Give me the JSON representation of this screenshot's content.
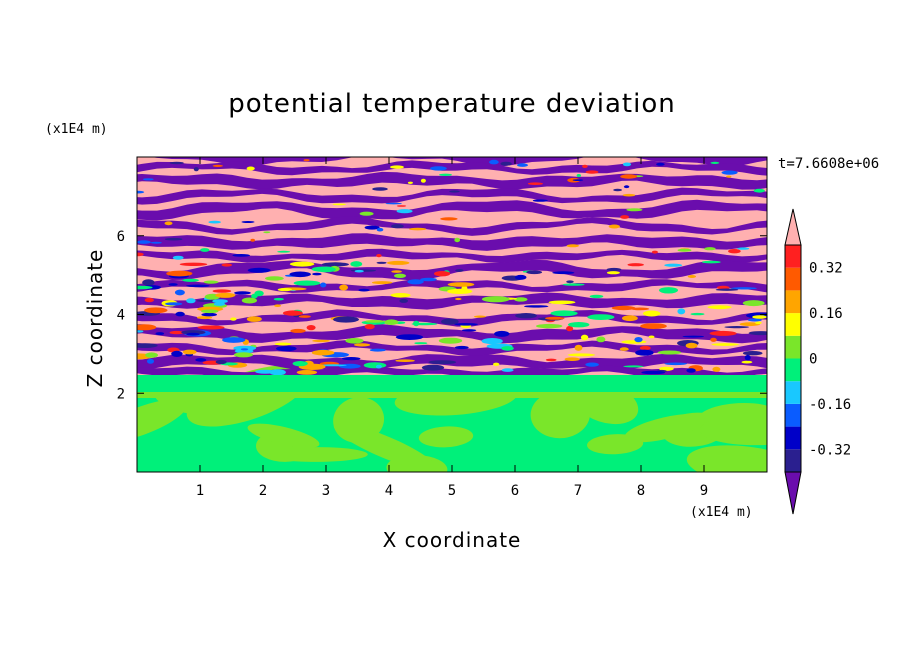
{
  "chart_data": {
    "type": "heatmap",
    "title": "potential temperature deviation",
    "xlabel": "X coordinate",
    "ylabel": "Z coordinate",
    "x_unit": "(x1E4 m)",
    "y_unit": "(x1E4 m)",
    "time_label": "t=7.6608e+06",
    "x_range": [
      0,
      10
    ],
    "y_range": [
      0,
      8
    ],
    "x_ticks": [
      "1",
      "2",
      "3",
      "4",
      "5",
      "6",
      "7",
      "8",
      "9"
    ],
    "y_ticks": [
      "2",
      "4",
      "6"
    ],
    "colorbar": {
      "levels": [
        -0.4,
        -0.32,
        -0.24,
        -0.16,
        -0.08,
        0,
        0.08,
        0.16,
        0.24,
        0.32,
        0.4
      ],
      "tick_labels": [
        "-0.32",
        "-0.16",
        "0",
        "0.16",
        "0.32"
      ],
      "colors": [
        "#6a0dad",
        "#2a1f8f",
        "#0000c8",
        "#0a5cff",
        "#19c8ff",
        "#00f07a",
        "#7ae62a",
        "#ffff00",
        "#ffa500",
        "#ff5a00",
        "#ff2020",
        "#ffb0b0"
      ]
    },
    "regions": [
      {
        "z_range": [
          0,
          2.5
        ],
        "description": "near-neutral layer",
        "dominant_levels": [
          -0.08,
          0.08
        ]
      },
      {
        "z_range": [
          2.5,
          8
        ],
        "description": "alternating bands",
        "dominant_levels": [
          -0.4,
          0.4
        ]
      }
    ]
  }
}
